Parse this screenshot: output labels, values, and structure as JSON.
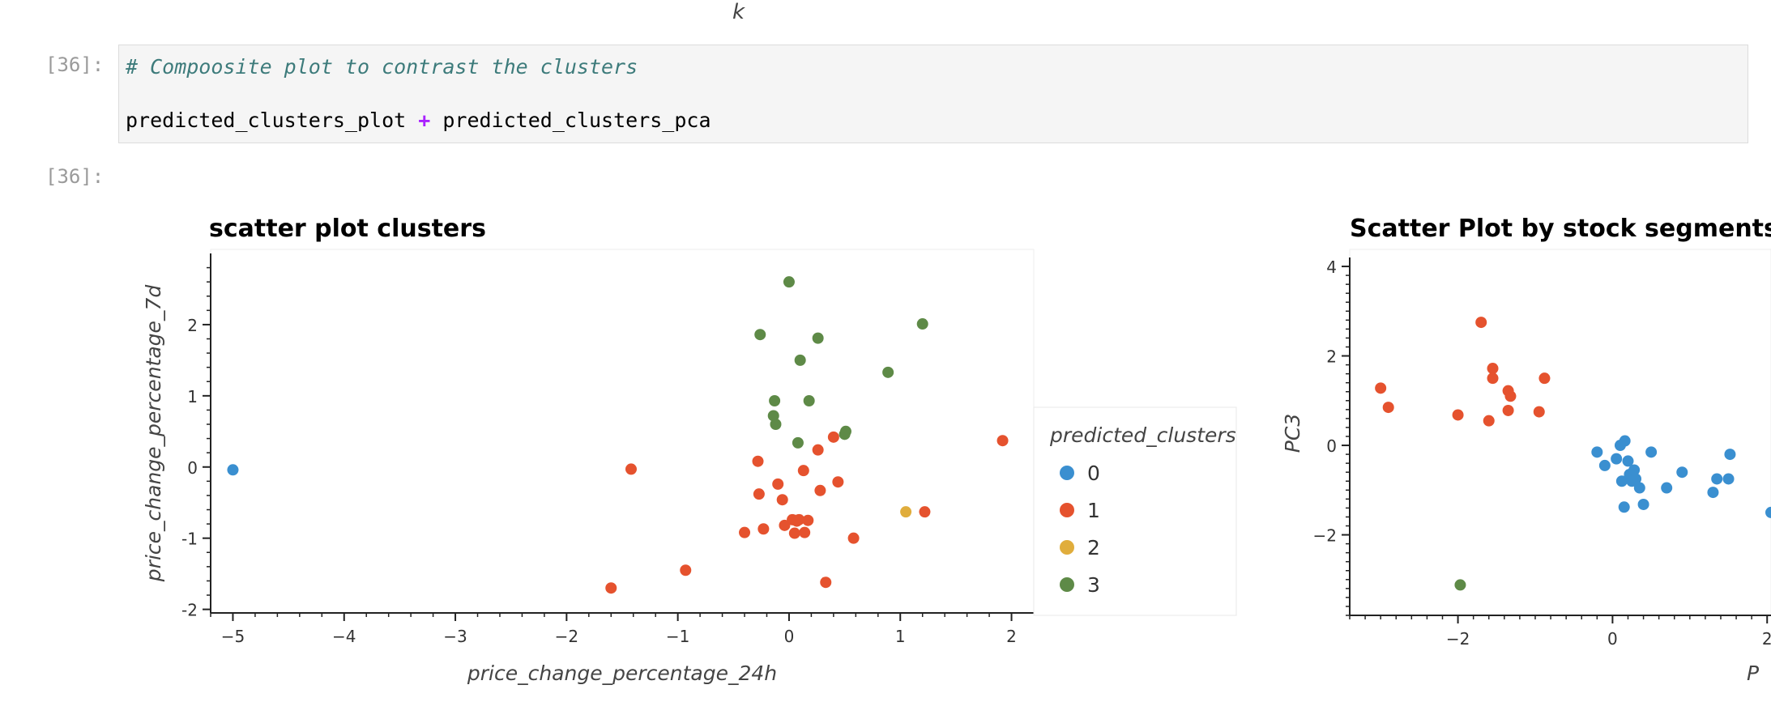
{
  "top_fragment": {
    "axis_label": "k"
  },
  "cells": {
    "input_prompt": "[36]:",
    "output_prompt": "[36]:",
    "code_comment": "# Compoosite plot to contrast the clusters",
    "code_left": "predicted_clusters_plot",
    "code_op": "+",
    "code_right": "predicted_clusters_pca"
  },
  "colors": {
    "cluster_0": "#3a8fd0",
    "cluster_1": "#e5522e",
    "cluster_2": "#e0ad3c",
    "cluster_3": "#5e8a47"
  },
  "legend": {
    "title": "predicted_clusters",
    "items": [
      "0",
      "1",
      "2",
      "3"
    ]
  },
  "chart_data": [
    {
      "type": "scatter",
      "title": "scatter plot clusters",
      "xlabel": "price_change_percentage_24h",
      "ylabel": "price_change_percentage_7d",
      "xlim": [
        -5.2,
        2.2
      ],
      "ylim": [
        -2.05,
        3.0
      ],
      "xticks": [
        "−5",
        "−4",
        "−3",
        "−2",
        "−1",
        "0",
        "1",
        "2"
      ],
      "xtick_values": [
        -5,
        -4,
        -3,
        -2,
        -1,
        0,
        1,
        2
      ],
      "yticks": [
        "-2",
        "-1",
        "0",
        "1",
        "2"
      ],
      "ytick_values": [
        -2,
        -1,
        0,
        1,
        2
      ],
      "legend_position": "right",
      "series": [
        {
          "name": "0",
          "points": [
            [
              -5.0,
              -0.04
            ]
          ]
        },
        {
          "name": "1",
          "points": [
            [
              -1.42,
              -0.03
            ],
            [
              -1.6,
              -1.7
            ],
            [
              -0.93,
              -1.45
            ],
            [
              -0.4,
              -0.92
            ],
            [
              -0.23,
              -0.87
            ],
            [
              -0.28,
              0.08
            ],
            [
              -0.27,
              -0.38
            ],
            [
              -0.1,
              -0.24
            ],
            [
              -0.06,
              -0.46
            ],
            [
              -0.04,
              -0.82
            ],
            [
              0.03,
              -0.74
            ],
            [
              0.07,
              -0.76
            ],
            [
              0.05,
              -0.93
            ],
            [
              0.09,
              -0.74
            ],
            [
              0.13,
              -0.05
            ],
            [
              0.17,
              -0.75
            ],
            [
              0.14,
              -0.92
            ],
            [
              0.26,
              0.24
            ],
            [
              0.28,
              -0.33
            ],
            [
              0.33,
              -1.62
            ],
            [
              0.4,
              0.42
            ],
            [
              0.44,
              -0.21
            ],
            [
              0.58,
              -1.0
            ],
            [
              1.22,
              -0.63
            ],
            [
              1.92,
              0.37
            ]
          ]
        },
        {
          "name": "2",
          "points": [
            [
              1.05,
              -0.63
            ]
          ]
        },
        {
          "name": "3",
          "points": [
            [
              0.0,
              2.6
            ],
            [
              -0.26,
              1.86
            ],
            [
              0.26,
              1.81
            ],
            [
              0.1,
              1.5
            ],
            [
              1.2,
              2.01
            ],
            [
              0.89,
              1.33
            ],
            [
              -0.13,
              0.93
            ],
            [
              0.18,
              0.93
            ],
            [
              -0.14,
              0.72
            ],
            [
              -0.12,
              0.6
            ],
            [
              0.08,
              0.34
            ],
            [
              0.5,
              0.46
            ],
            [
              0.51,
              0.5
            ]
          ]
        }
      ]
    },
    {
      "type": "scatter",
      "title": "Scatter Plot by stock segments",
      "xlabel": "P",
      "ylabel": "PC3",
      "xlim": [
        -3.4,
        2.05
      ],
      "ylim": [
        -3.8,
        4.2
      ],
      "xticks": [
        "−2",
        "0",
        "2"
      ],
      "xtick_values": [
        -2,
        0,
        2
      ],
      "yticks": [
        "−2",
        "0",
        "2",
        "4"
      ],
      "ytick_values": [
        -2,
        0,
        2,
        4
      ],
      "series": [
        {
          "name": "0",
          "points": [
            [
              -0.2,
              -0.15
            ],
            [
              -0.1,
              -0.45
            ],
            [
              0.05,
              -0.3
            ],
            [
              0.1,
              0.0
            ],
            [
              0.12,
              -0.8
            ],
            [
              0.16,
              0.1
            ],
            [
              0.2,
              -0.35
            ],
            [
              0.22,
              -0.65
            ],
            [
              0.25,
              -0.8
            ],
            [
              0.28,
              -0.55
            ],
            [
              0.3,
              -0.75
            ],
            [
              0.15,
              -1.38
            ],
            [
              0.35,
              -0.95
            ],
            [
              0.4,
              -1.32
            ],
            [
              0.5,
              -0.15
            ],
            [
              0.7,
              -0.95
            ],
            [
              0.9,
              -0.6
            ],
            [
              1.3,
              -1.05
            ],
            [
              1.35,
              -0.75
            ],
            [
              1.5,
              -0.75
            ],
            [
              1.52,
              -0.2
            ],
            [
              2.05,
              -1.5
            ]
          ]
        },
        {
          "name": "1",
          "points": [
            [
              -3.0,
              1.28
            ],
            [
              -2.9,
              0.85
            ],
            [
              -2.0,
              0.68
            ],
            [
              -1.7,
              2.75
            ],
            [
              -1.6,
              0.55
            ],
            [
              -1.55,
              1.72
            ],
            [
              -1.55,
              1.5
            ],
            [
              -1.35,
              1.22
            ],
            [
              -1.35,
              0.78
            ],
            [
              -1.32,
              1.1
            ],
            [
              -0.95,
              0.75
            ],
            [
              -0.88,
              1.5
            ]
          ]
        },
        {
          "name": "3",
          "points": [
            [
              -1.97,
              -3.12
            ]
          ]
        }
      ]
    }
  ]
}
